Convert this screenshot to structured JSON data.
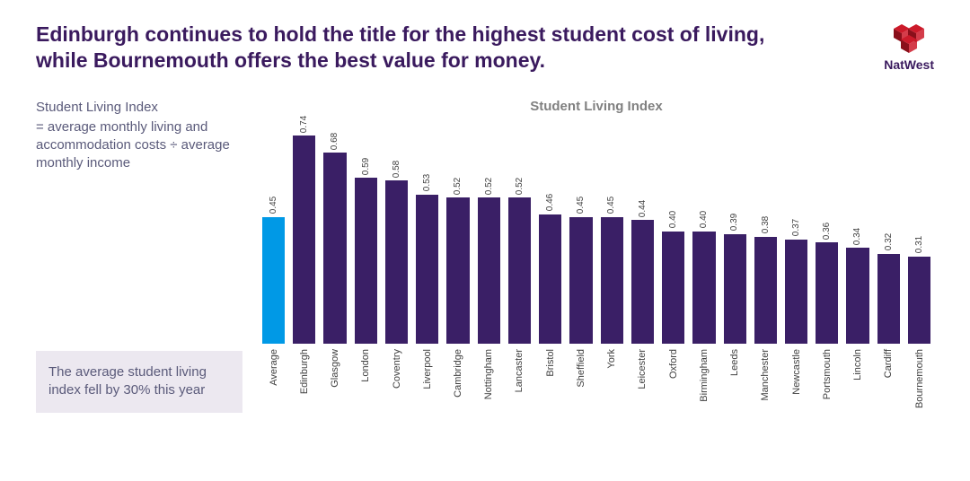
{
  "colors": {
    "title": "#3a1a5e",
    "text": "#5a5a7a",
    "chart_title": "#808080",
    "bar_default": "#3a1f66",
    "bar_highlight": "#0099e6",
    "note_bg": "#ece8f0",
    "logo_red": "#cc1a2a",
    "logo_purple": "#3a1a5e",
    "x_label": "#404040",
    "value_label": "#404040"
  },
  "title": "Edinburgh continues to hold the title for the highest student cost of living, while Bournemouth offers the best value for money.",
  "logo_text": "NatWest",
  "definition": {
    "head": "Student Living Index",
    "body": "= average monthly living and accommodation costs ÷ average monthly income"
  },
  "note": "The average student living index fell by 30% this year",
  "chart": {
    "type": "bar",
    "title": "Student Living Index",
    "ylim": [
      0,
      0.8
    ],
    "bar_width": 1.0,
    "value_fontsize": 10,
    "xlabel_fontsize": 11,
    "title_fontsize": 15,
    "background_color": "#ffffff",
    "data": [
      {
        "label": "Average",
        "value": 0.45,
        "highlight": true
      },
      {
        "label": "Edinburgh",
        "value": 0.74,
        "highlight": false
      },
      {
        "label": "Glasgow",
        "value": 0.68,
        "highlight": false
      },
      {
        "label": "London",
        "value": 0.59,
        "highlight": false
      },
      {
        "label": "Coventry",
        "value": 0.58,
        "highlight": false
      },
      {
        "label": "Liverpool",
        "value": 0.53,
        "highlight": false
      },
      {
        "label": "Cambridge",
        "value": 0.52,
        "highlight": false
      },
      {
        "label": "Nottingham",
        "value": 0.52,
        "highlight": false
      },
      {
        "label": "Lancaster",
        "value": 0.52,
        "highlight": false
      },
      {
        "label": "Bristol",
        "value": 0.46,
        "highlight": false
      },
      {
        "label": "Sheffield",
        "value": 0.45,
        "highlight": false
      },
      {
        "label": "York",
        "value": 0.45,
        "highlight": false
      },
      {
        "label": "Leicester",
        "value": 0.44,
        "highlight": false
      },
      {
        "label": "Oxford",
        "value": 0.4,
        "highlight": false
      },
      {
        "label": "Birmingham",
        "value": 0.4,
        "highlight": false
      },
      {
        "label": "Leeds",
        "value": 0.39,
        "highlight": false
      },
      {
        "label": "Manchester",
        "value": 0.38,
        "highlight": false
      },
      {
        "label": "Newcastle",
        "value": 0.37,
        "highlight": false
      },
      {
        "label": "Portsmouth",
        "value": 0.36,
        "highlight": false
      },
      {
        "label": "Lincoln",
        "value": 0.34,
        "highlight": false
      },
      {
        "label": "Cardiff",
        "value": 0.32,
        "highlight": false
      },
      {
        "label": "Bournemouth",
        "value": 0.31,
        "highlight": false
      }
    ]
  }
}
